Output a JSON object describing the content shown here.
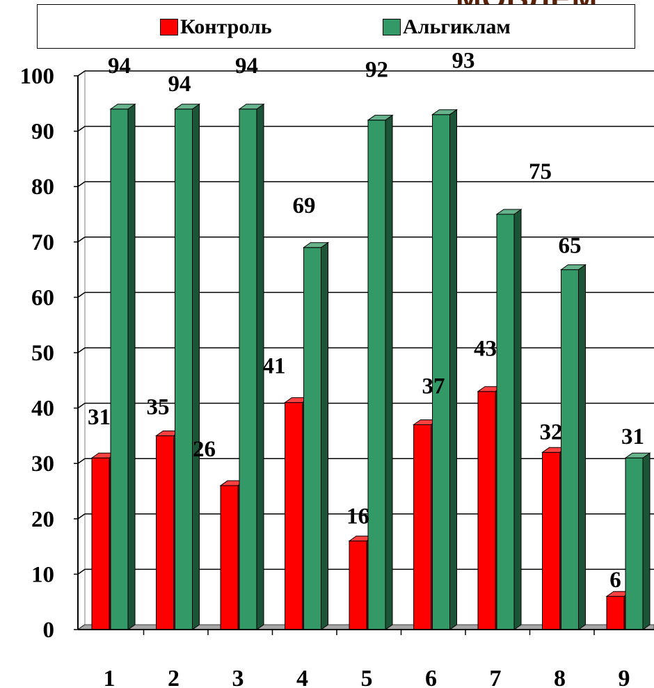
{
  "background_heading": "МОБЛЕМ",
  "chart_data": {
    "type": "bar",
    "categories": [
      "1",
      "2",
      "3",
      "4",
      "5",
      "6",
      "7",
      "8",
      "9"
    ],
    "series": [
      {
        "name": "Контроль",
        "color": "#ff0000",
        "values": [
          31,
          35,
          26,
          41,
          16,
          37,
          43,
          32,
          6
        ]
      },
      {
        "name": "Альгиклам",
        "color": "#339966",
        "values": [
          94,
          94,
          94,
          69,
          92,
          93,
          75,
          65,
          31
        ]
      }
    ],
    "ylim": [
      0,
      100
    ],
    "yticks": [
      0,
      10,
      20,
      30,
      40,
      50,
      60,
      70,
      80,
      90,
      100
    ],
    "grid": true,
    "legend_position": "top",
    "style": "3d-clustered-column"
  }
}
